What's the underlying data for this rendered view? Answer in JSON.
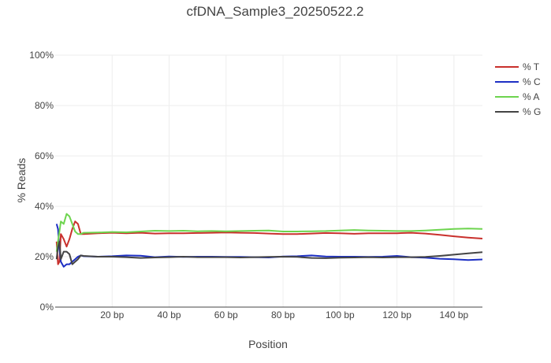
{
  "chart_data": {
    "type": "line",
    "title": "cfDNA_Sample3_20250522.2",
    "xlabel": "Position",
    "ylabel": "% Reads",
    "xlim": [
      0,
      150
    ],
    "ylim": [
      0,
      100
    ],
    "x_ticks": [
      20,
      40,
      60,
      80,
      100,
      120,
      140
    ],
    "x_tick_labels": [
      "20 bp",
      "40 bp",
      "60 bp",
      "80 bp",
      "100 bp",
      "120 bp",
      "140 bp"
    ],
    "y_ticks": [
      0,
      20,
      40,
      60,
      80,
      100
    ],
    "y_tick_labels": [
      "0%",
      "20%",
      "40%",
      "60%",
      "80%",
      "100%"
    ],
    "grid": true,
    "legend_position": "top-right",
    "x": [
      0.5,
      1,
      1.5,
      2,
      3,
      4,
      5,
      6,
      7,
      8,
      9,
      10,
      15,
      20,
      25,
      30,
      35,
      40,
      45,
      50,
      55,
      60,
      65,
      70,
      75,
      80,
      85,
      90,
      95,
      100,
      105,
      110,
      115,
      120,
      125,
      130,
      135,
      140,
      145,
      150
    ],
    "series": [
      {
        "name": "% T",
        "color": "#c9302c",
        "values": [
          26,
          17,
          18,
          29,
          27,
          24,
          27,
          31,
          34,
          33,
          29,
          29,
          29.3,
          29.5,
          29.3,
          29.5,
          29.2,
          29.3,
          29.3,
          29.4,
          29.5,
          29.6,
          29.5,
          29.4,
          29.2,
          29,
          29,
          29.2,
          29.4,
          29.3,
          29.1,
          29.3,
          29.3,
          29.3,
          29.5,
          29.2,
          28.7,
          28.1,
          27.6,
          27.2
        ]
      },
      {
        "name": "% C",
        "color": "#1d2fc4",
        "values": [
          33,
          31,
          23,
          18,
          16,
          17,
          17,
          18,
          19,
          20,
          20.5,
          20.2,
          20,
          20.2,
          20.5,
          20.4,
          19.8,
          20.1,
          19.9,
          20,
          20,
          19.9,
          19.9,
          19.8,
          19.7,
          20.1,
          20.2,
          20.5,
          20.1,
          20,
          20,
          19.9,
          20,
          20.3,
          19.8,
          19.6,
          19.2,
          19,
          18.7,
          18.9
        ]
      },
      {
        "name": "% A",
        "color": "#6dd44e",
        "values": [
          22,
          26,
          30,
          34,
          33,
          37,
          36,
          33,
          30,
          29,
          29,
          29.5,
          29.6,
          29.8,
          29.7,
          30,
          30.3,
          30.2,
          30.3,
          30.1,
          30.2,
          30.1,
          30.2,
          30.3,
          30.4,
          30,
          30,
          30.1,
          30.2,
          30.4,
          30.6,
          30.4,
          30.3,
          30.2,
          30.2,
          30.4,
          30.7,
          31,
          31.2,
          31
        ]
      },
      {
        "name": "% G",
        "color": "#444444",
        "values": [
          19,
          24,
          26,
          19,
          22,
          22,
          21,
          17,
          18,
          19,
          20.5,
          20.3,
          20,
          20,
          19.8,
          19.5,
          19.7,
          19.8,
          20,
          19.8,
          19.8,
          19.8,
          19.7,
          19.8,
          19.9,
          20,
          19.9,
          19.5,
          19.4,
          19.6,
          19.7,
          19.8,
          19.7,
          19.8,
          19.8,
          19.9,
          20.3,
          20.8,
          21.3,
          21.8
        ]
      }
    ]
  }
}
